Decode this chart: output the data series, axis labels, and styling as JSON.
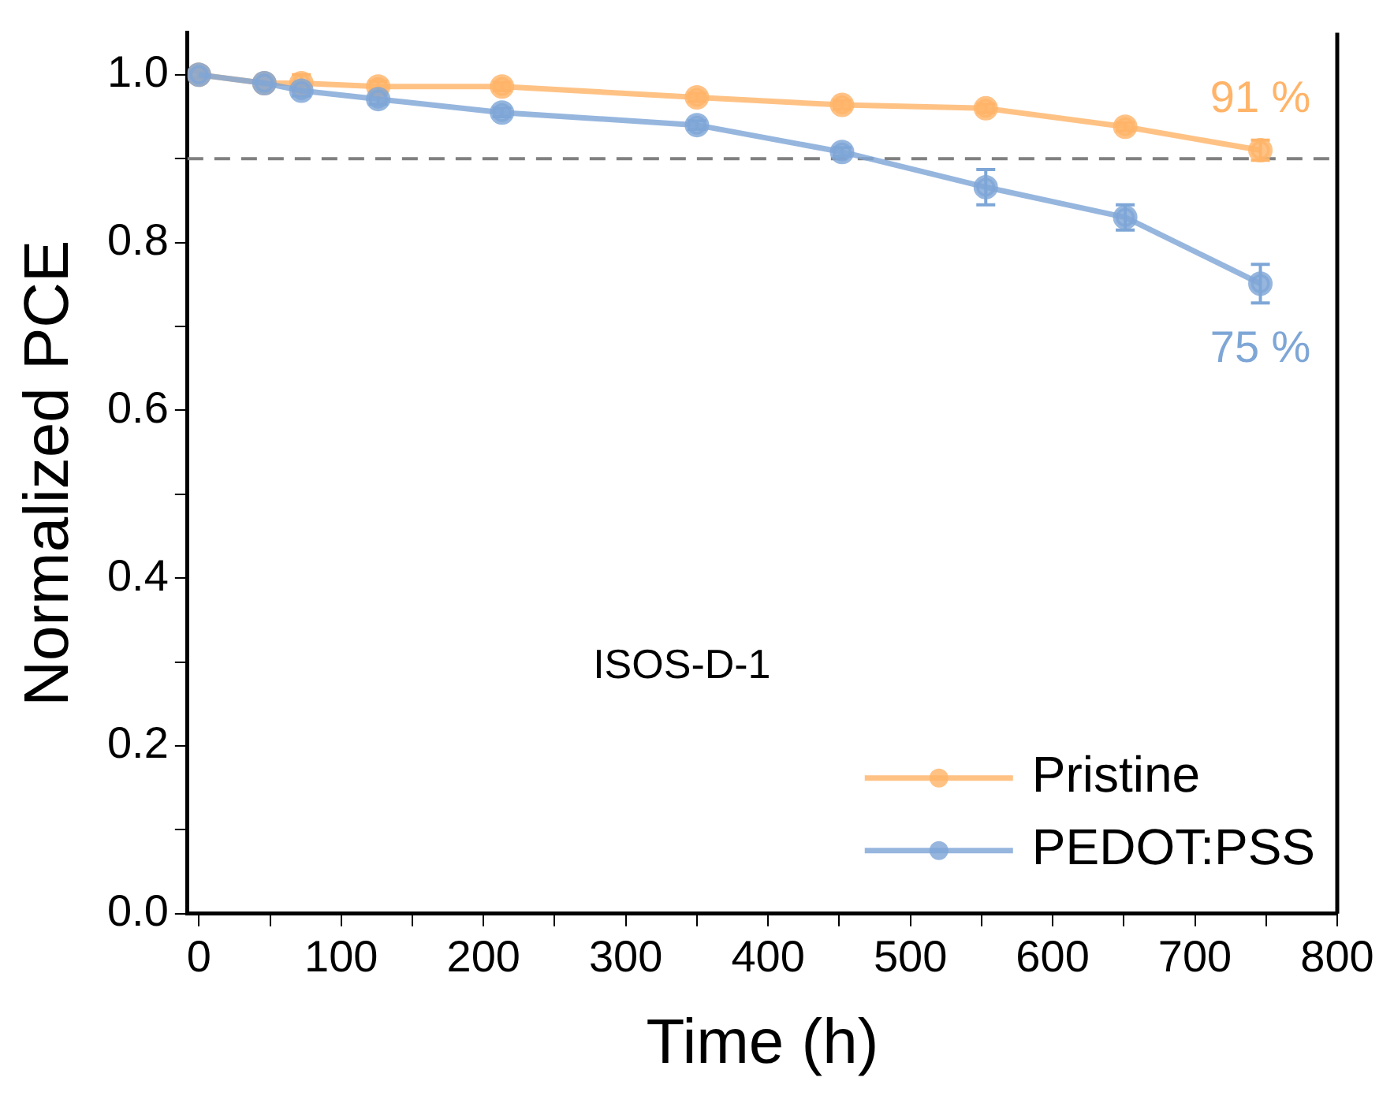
{
  "chart_data": {
    "type": "line",
    "xlabel": "Time (h)",
    "ylabel": "Normalized PCE",
    "xlim": [
      -8,
      800
    ],
    "xticks": [
      0,
      {
        "value": 50,
        "label": null
      },
      100,
      {
        "value": 150,
        "label": null
      },
      200,
      {
        "value": 250,
        "label": null
      },
      300,
      {
        "value": 350,
        "label": null
      },
      400,
      {
        "value": 450,
        "label": null
      },
      500,
      {
        "value": 550,
        "label": null
      },
      600,
      {
        "value": 650,
        "label": null
      },
      700,
      {
        "value": 750,
        "label": null
      },
      800
    ],
    "ylim": [
      0,
      1.05
    ],
    "yticks": [
      {
        "value": 0,
        "label": "0.0"
      },
      {
        "value": 0.1,
        "label": null
      },
      0.2,
      {
        "value": 0.3,
        "label": null
      },
      0.4,
      {
        "value": 0.5,
        "label": null
      },
      0.6,
      {
        "value": 0.7,
        "label": null
      },
      0.8,
      {
        "value": 0.9,
        "label": null
      },
      {
        "value": 1,
        "label": "1.0"
      }
    ],
    "x": [
      0,
      46,
      72,
      126,
      213,
      350,
      452,
      553,
      651,
      746
    ],
    "series": [
      {
        "name": "Pristine",
        "color": "#ffb469",
        "values": [
          1.0,
          0.99,
          0.99,
          0.986,
          0.986,
          0.973,
          0.964,
          0.96,
          0.938,
          0.91
        ],
        "errors": [
          0.004,
          null,
          0.01,
          0.006,
          0.005,
          0.005,
          0.005,
          0.005,
          0.005,
          0.012
        ]
      },
      {
        "name": "PEDOT:PSS",
        "color": "#7ea6d6",
        "values": [
          1.0,
          0.99,
          0.981,
          0.971,
          0.955,
          0.94,
          0.908,
          0.866,
          0.83,
          0.751
        ],
        "errors": [
          0.004,
          null,
          0.006,
          0.006,
          0.005,
          0.005,
          0.005,
          0.021,
          0.015,
          0.023
        ]
      }
    ],
    "ref_lines": [
      {
        "axis": "y",
        "value": 0.9,
        "color": "#808080",
        "line_style": "dashed"
      }
    ],
    "annotations": [
      {
        "text": "91 %",
        "x": 746,
        "y": 0.91
      },
      {
        "text": "75 %",
        "x": 746,
        "y": 0.751
      },
      "ISOS-D-1"
    ],
    "marker": "circle",
    "legend": "bottom right",
    "grid": false
  }
}
